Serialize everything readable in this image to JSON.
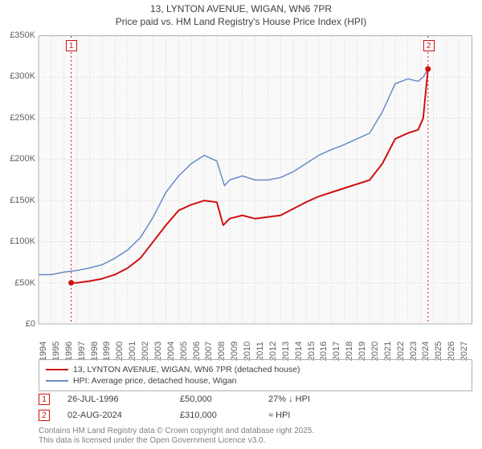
{
  "title": {
    "line1": "13, LYNTON AVENUE, WIGAN, WN6 7PR",
    "line2": "Price paid vs. HM Land Registry's House Price Index (HPI)"
  },
  "chart": {
    "type": "line",
    "background_color": "#f9f9f9",
    "grid_color": "#d8d8d8",
    "grid_dash": "2,2",
    "axis_color": "#b0b0b0",
    "x_range": [
      1994,
      2028
    ],
    "x_ticks": [
      1994,
      1995,
      1996,
      1997,
      1998,
      1999,
      2000,
      2001,
      2002,
      2003,
      2004,
      2005,
      2006,
      2007,
      2008,
      2009,
      2010,
      2011,
      2012,
      2013,
      2014,
      2015,
      2016,
      2017,
      2018,
      2019,
      2020,
      2021,
      2022,
      2023,
      2024,
      2025,
      2026,
      2027
    ],
    "y_range": [
      0,
      350
    ],
    "y_ticks": [
      0,
      50,
      100,
      150,
      200,
      250,
      300,
      350
    ],
    "y_prefix": "£",
    "y_suffix": "K",
    "label_fontsize": 11,
    "label_color": "#606060",
    "series": [
      {
        "name": "price_paid",
        "label": "13, LYNTON AVENUE, WIGAN, WN6 7PR (detached house)",
        "color": "#d01010",
        "width": 2,
        "data": [
          [
            1996.56,
            50
          ],
          [
            1997,
            50
          ],
          [
            1998,
            52
          ],
          [
            1999,
            55
          ],
          [
            2000,
            60
          ],
          [
            2001,
            68
          ],
          [
            2002,
            80
          ],
          [
            2003,
            100
          ],
          [
            2004,
            120
          ],
          [
            2005,
            138
          ],
          [
            2006,
            145
          ],
          [
            2007,
            150
          ],
          [
            2008,
            148
          ],
          [
            2008.5,
            120
          ],
          [
            2009,
            128
          ],
          [
            2010,
            132
          ],
          [
            2011,
            128
          ],
          [
            2012,
            130
          ],
          [
            2013,
            132
          ],
          [
            2014,
            140
          ],
          [
            2015,
            148
          ],
          [
            2016,
            155
          ],
          [
            2017,
            160
          ],
          [
            2018,
            165
          ],
          [
            2019,
            170
          ],
          [
            2020,
            175
          ],
          [
            2021,
            195
          ],
          [
            2022,
            225
          ],
          [
            2023,
            232
          ],
          [
            2023.8,
            236
          ],
          [
            2024.2,
            250
          ],
          [
            2024.58,
            310
          ]
        ]
      },
      {
        "name": "hpi",
        "label": "HPI: Average price, detached house, Wigan",
        "color": "#6a8bc7",
        "width": 1.5,
        "data": [
          [
            1994,
            60
          ],
          [
            1995,
            60
          ],
          [
            1996,
            63
          ],
          [
            1997,
            65
          ],
          [
            1998,
            68
          ],
          [
            1999,
            72
          ],
          [
            2000,
            80
          ],
          [
            2001,
            90
          ],
          [
            2002,
            105
          ],
          [
            2003,
            130
          ],
          [
            2004,
            160
          ],
          [
            2005,
            180
          ],
          [
            2006,
            195
          ],
          [
            2007,
            205
          ],
          [
            2008,
            198
          ],
          [
            2008.6,
            168
          ],
          [
            2009,
            175
          ],
          [
            2010,
            180
          ],
          [
            2011,
            175
          ],
          [
            2012,
            175
          ],
          [
            2013,
            178
          ],
          [
            2014,
            185
          ],
          [
            2015,
            195
          ],
          [
            2016,
            205
          ],
          [
            2017,
            212
          ],
          [
            2018,
            218
          ],
          [
            2019,
            225
          ],
          [
            2020,
            232
          ],
          [
            2021,
            258
          ],
          [
            2022,
            292
          ],
          [
            2023,
            298
          ],
          [
            2023.8,
            295
          ],
          [
            2024.2,
            300
          ],
          [
            2024.58,
            310
          ]
        ]
      }
    ],
    "vlines": [
      {
        "x": 1996.56,
        "color": "#d01010"
      },
      {
        "x": 2024.58,
        "color": "#d01010"
      }
    ],
    "markers": [
      {
        "id": "1",
        "x": 1996.56,
        "y_top_offset": 12,
        "color": "#d01010",
        "point_y": 50
      },
      {
        "id": "2",
        "x": 2024.58,
        "y_top_offset": 12,
        "color": "#d01010",
        "point_y": 310
      }
    ]
  },
  "legend": {
    "border_color": "#b0b0b0"
  },
  "annotations": [
    {
      "id": "1",
      "color": "#d01010",
      "date": "26-JUL-1996",
      "price": "£50,000",
      "pct": "27% ↓ HPI"
    },
    {
      "id": "2",
      "color": "#d01010",
      "date": "02-AUG-2024",
      "price": "£310,000",
      "pct": "≈ HPI"
    }
  ],
  "footer": {
    "line1": "Contains HM Land Registry data © Crown copyright and database right 2025.",
    "line2": "This data is licensed under the Open Government Licence v3.0."
  }
}
